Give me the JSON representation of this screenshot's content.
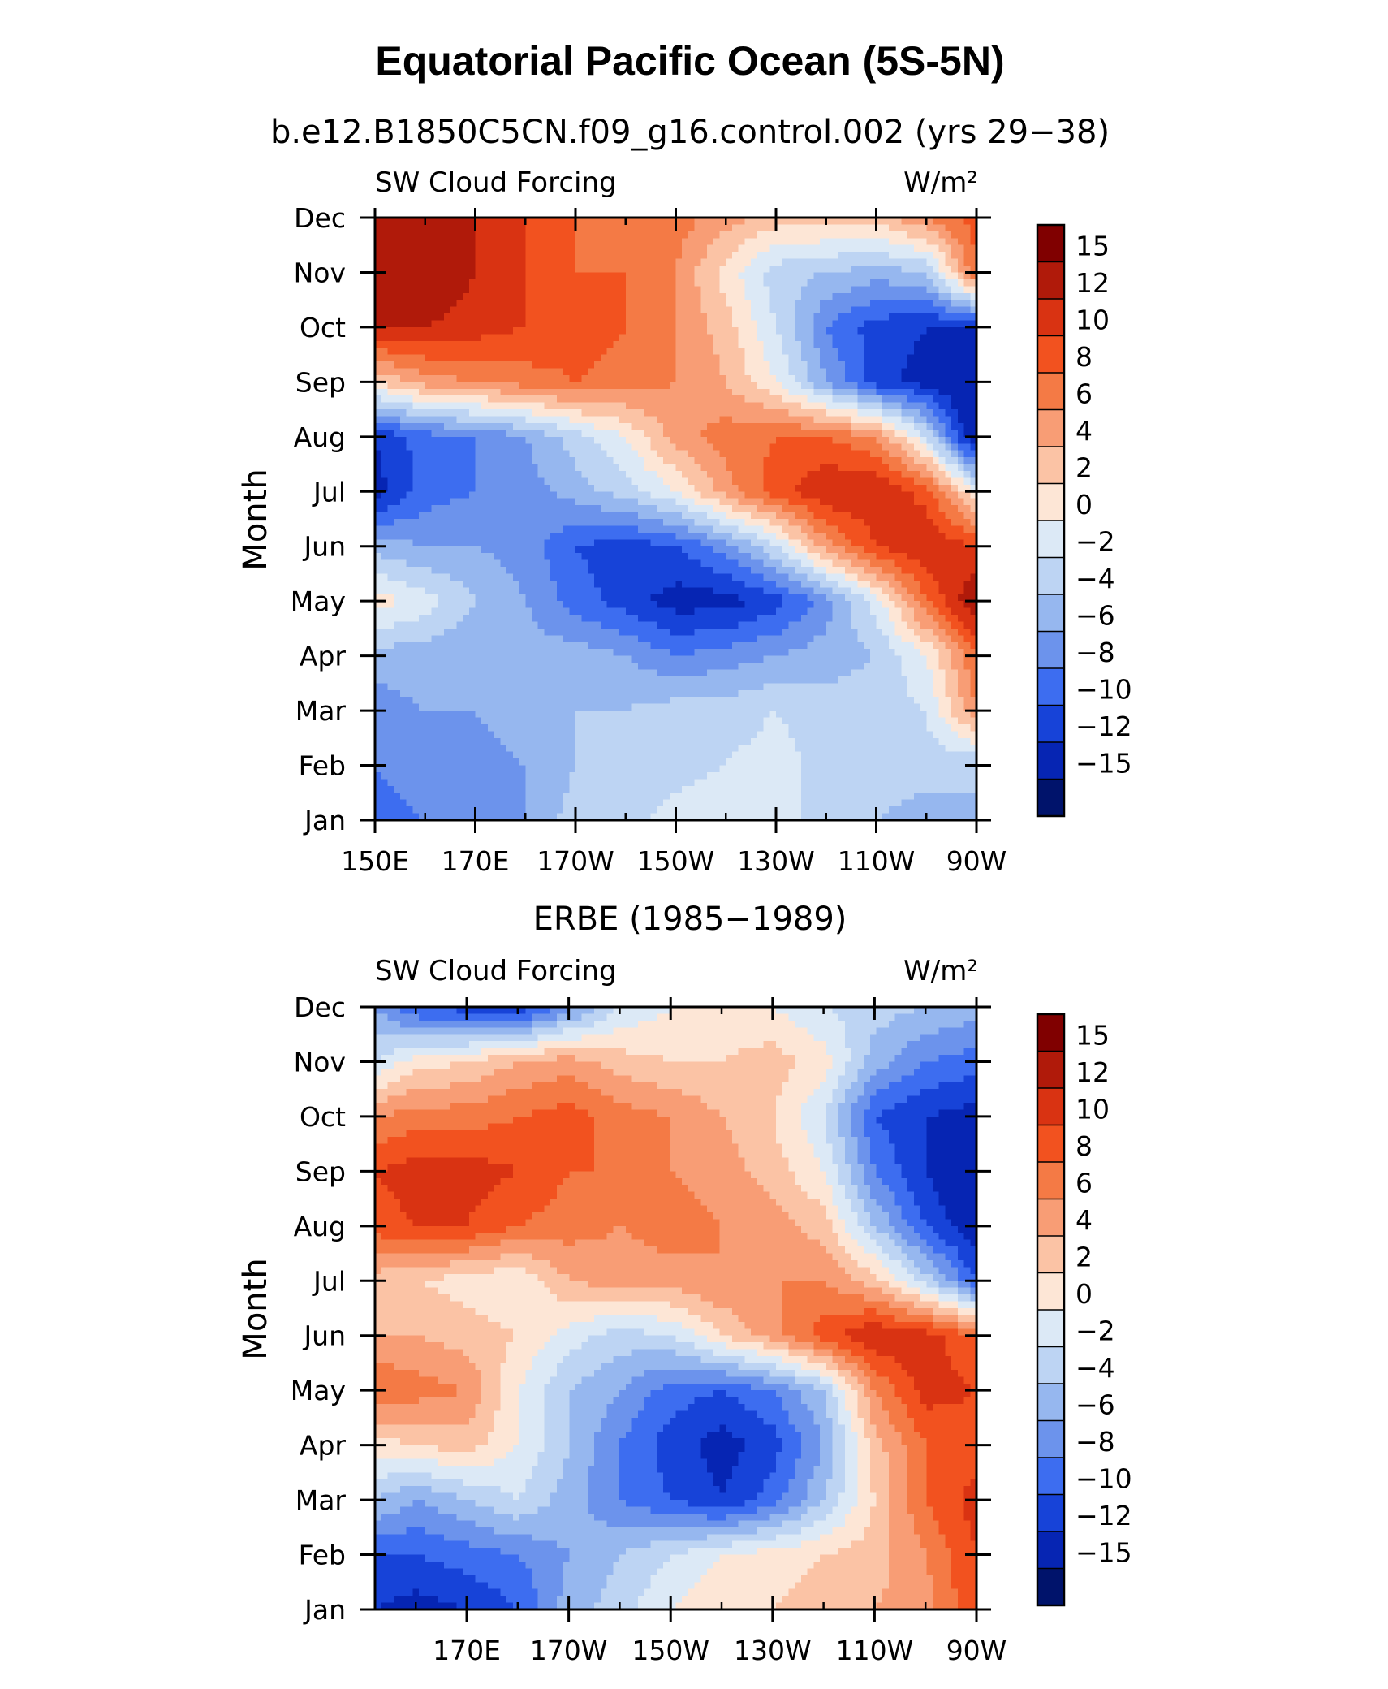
{
  "title": "Equatorial Pacific Ocean (5S-5N)",
  "colorbar": {
    "labels": [
      "15",
      "12",
      "10",
      "8",
      "6",
      "4",
      "2",
      "0",
      "−2",
      "−4",
      "−6",
      "−8",
      "−10",
      "−12",
      "−15"
    ],
    "colors": [
      "#800000",
      "#b01a0a",
      "#d93312",
      "#f2521f",
      "#f47a45",
      "#f89d75",
      "#fbc3a5",
      "#fde6d6",
      "#dce9f6",
      "#bdd4f3",
      "#96b7ef",
      "#6c93ec",
      "#3d6df0",
      "#1743d8",
      "#0625b3",
      "#00136b"
    ]
  },
  "chart_data": [
    {
      "type": "heatmap",
      "title": "b.e12.B1850C5CN.f09_g16.control.002 (yrs 29−38)",
      "left_label": "SW Cloud Forcing",
      "right_label": "W/m²",
      "ylabel": "Month",
      "y_tick_labels": [
        "Dec",
        "Nov",
        "Oct",
        "Sep",
        "Aug",
        "Jul",
        "Jun",
        "May",
        "Apr",
        "Mar",
        "Feb",
        "Jan"
      ],
      "x_tick_labels": [
        "150E",
        "170E",
        "170W",
        "150W",
        "130W",
        "110W",
        "90W"
      ],
      "x_tick_values": [
        150,
        170,
        190,
        210,
        230,
        250,
        270
      ],
      "xlim": [
        150,
        270
      ],
      "months": [
        "Jan",
        "Feb",
        "Mar",
        "Apr",
        "May",
        "Jun",
        "Jul",
        "Aug",
        "Sep",
        "Oct",
        "Nov",
        "Dec"
      ],
      "longitudes": [
        150,
        160,
        170,
        180,
        190,
        200,
        210,
        220,
        230,
        240,
        250,
        260,
        270
      ],
      "values": [
        [
          -9,
          -8,
          -8,
          -6,
          -3,
          -3,
          -1,
          0,
          -1,
          -3,
          -4,
          -5,
          -4
        ],
        [
          -8,
          -7,
          -7,
          -6,
          -4,
          -3,
          -3,
          -2,
          -1,
          -3,
          -3,
          -3,
          -4
        ],
        [
          -7,
          -6,
          -6,
          -5,
          -4,
          -4,
          -3,
          -3,
          -2,
          -3,
          -3,
          -2,
          6
        ],
        [
          -5,
          -5,
          -6,
          -5,
          -5,
          -6,
          -8,
          -7,
          -6,
          -5,
          -4,
          0,
          8
        ],
        [
          1,
          -1,
          -4,
          -6,
          -9,
          -11,
          -13,
          -13,
          -11,
          -7,
          -1,
          8,
          14
        ],
        [
          -5,
          -6,
          -6,
          -7,
          -10,
          -11,
          -10,
          -7,
          -2,
          5,
          10,
          12,
          10
        ],
        [
          -13,
          -9,
          -8,
          -7,
          -5,
          -3,
          0,
          5,
          9,
          12,
          12,
          9,
          0
        ],
        [
          -12,
          -9,
          -8,
          -6,
          -3,
          0,
          5,
          7,
          8,
          8,
          6,
          -2,
          -15
        ],
        [
          2,
          5,
          6,
          7,
          8,
          7,
          6,
          4,
          0,
          -6,
          -11,
          -13,
          -15
        ],
        [
          12,
          12,
          11,
          10,
          9,
          8,
          6,
          3,
          -2,
          -8,
          -11,
          -12,
          -12
        ],
        [
          13,
          14,
          12,
          10,
          8,
          8,
          6,
          1,
          -3,
          -4,
          -5,
          -4,
          8
        ],
        [
          14,
          13,
          12,
          10,
          8,
          7,
          7,
          5,
          3,
          3,
          3,
          6,
          9
        ]
      ]
    },
    {
      "type": "heatmap",
      "title": "ERBE (1985−1989)",
      "left_label": "SW Cloud Forcing",
      "right_label": "W/m²",
      "ylabel": "Month",
      "y_tick_labels": [
        "Dec",
        "Nov",
        "Oct",
        "Sep",
        "Aug",
        "Jul",
        "Jun",
        "May",
        "Apr",
        "Mar",
        "Feb",
        "Jan"
      ],
      "x_tick_labels": [
        "170E",
        "170W",
        "150W",
        "130W",
        "110W",
        "90W"
      ],
      "x_tick_values": [
        170,
        190,
        210,
        230,
        250,
        270
      ],
      "xlim": [
        152,
        270
      ],
      "months": [
        "Jan",
        "Feb",
        "Mar",
        "Apr",
        "May",
        "Jun",
        "Jul",
        "Aug",
        "Sep",
        "Oct",
        "Nov",
        "Dec"
      ],
      "longitudes": [
        152,
        160,
        170,
        180,
        190,
        200,
        210,
        220,
        230,
        240,
        250,
        260,
        270
      ],
      "values": [
        [
          -12,
          -13,
          -12,
          -10,
          -5,
          -3,
          0,
          2,
          2,
          3,
          4,
          5,
          10
        ],
        [
          -10,
          -10,
          -9,
          -8,
          -6,
          -4,
          -2,
          0,
          1,
          2,
          3,
          6,
          10
        ],
        [
          -4,
          -6,
          -4,
          -2,
          -5,
          -8,
          -10,
          -12,
          -9,
          -4,
          2,
          8,
          11
        ],
        [
          1,
          2,
          3,
          0,
          -4,
          -8,
          -11,
          -13,
          -11,
          -6,
          3,
          8,
          9
        ],
        [
          8,
          7,
          6,
          0,
          -4,
          -6,
          -9,
          -10,
          -8,
          -4,
          6,
          11,
          10
        ],
        [
          4,
          4,
          3,
          2,
          -1,
          -3,
          -2,
          2,
          5,
          9,
          12,
          11,
          8
        ],
        [
          3,
          2,
          1,
          0,
          4,
          5,
          5,
          6,
          6,
          6,
          3,
          -3,
          -10
        ],
        [
          9,
          10,
          10,
          8,
          7,
          6,
          7,
          6,
          5,
          3,
          -4,
          -10,
          -14
        ],
        [
          10,
          11,
          11,
          10,
          8,
          8,
          6,
          5,
          3,
          0,
          -8,
          -12,
          -15
        ],
        [
          6,
          7,
          7,
          8,
          9,
          7,
          6,
          4,
          2,
          -2,
          -10,
          -12,
          -13
        ],
        [
          -2,
          1,
          2,
          4,
          5,
          3,
          2,
          2,
          3,
          1,
          -5,
          -8,
          -9
        ],
        [
          -6,
          -10,
          -11,
          -12,
          -7,
          -2,
          0,
          1,
          0,
          -2,
          -3,
          -4,
          -5
        ]
      ]
    }
  ]
}
